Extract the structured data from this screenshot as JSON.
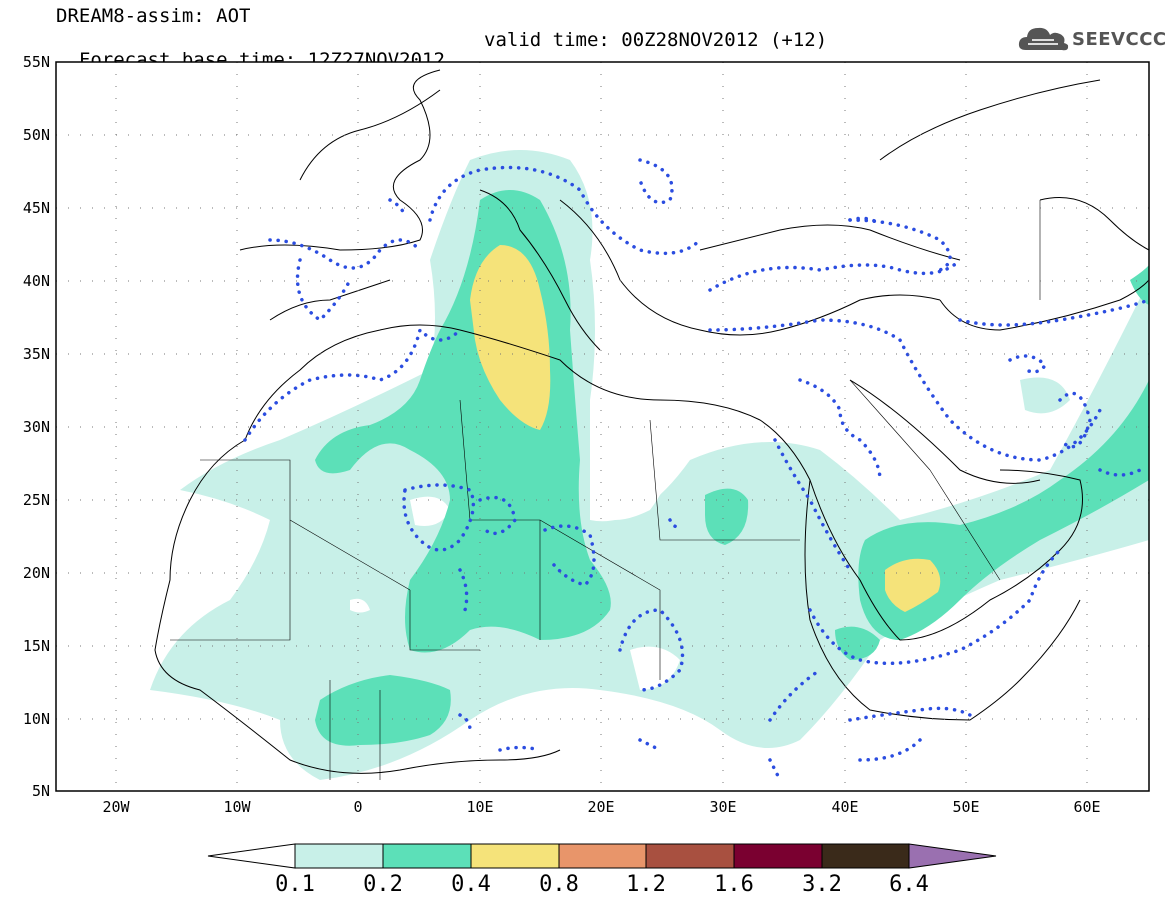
{
  "header": {
    "line1": "DREAM8-assim: AOT",
    "base_time": "Forecast base time: 12Z27NOV2012",
    "valid_time": "valid time: 00Z28NOV2012 (+12)"
  },
  "logo": {
    "text": "SEEVCCC",
    "icon": "cloud-icon"
  },
  "map": {
    "lon_range": [
      -25,
      65
    ],
    "lat_range": [
      5,
      55
    ],
    "lat_ticks": [
      "55N",
      "50N",
      "45N",
      "40N",
      "35N",
      "30N",
      "25N",
      "20N",
      "15N",
      "10N",
      "5N"
    ],
    "lon_ticks": [
      "20W",
      "10W",
      "0",
      "10E",
      "20E",
      "30E",
      "40E",
      "50E",
      "60E"
    ]
  },
  "colorbar": {
    "labels": [
      "0.1",
      "0.2",
      "0.4",
      "0.8",
      "1.2",
      "1.6",
      "3.2",
      "6.4"
    ],
    "colors": [
      "#c8f0e8",
      "#5ce0b8",
      "#f5e37a",
      "#e8956a",
      "#a85040",
      "#7a0030",
      "#3a2a1a",
      "#9a70b0"
    ]
  }
}
